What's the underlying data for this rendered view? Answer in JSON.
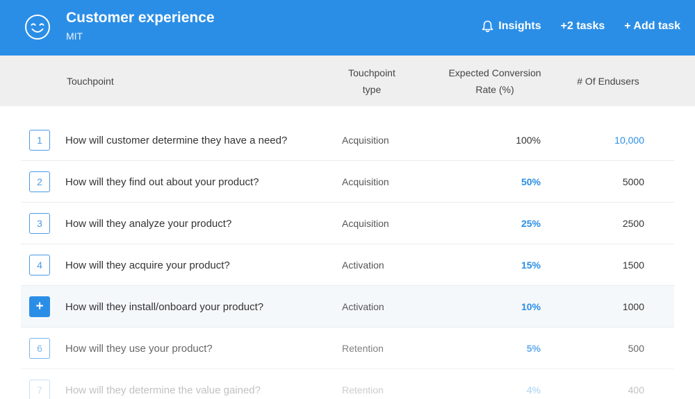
{
  "header": {
    "icon": "smiley-icon",
    "title": "Customer experience",
    "subtitle": "MIT",
    "insights_label": "Insights",
    "tasks_label": "+2 tasks",
    "add_task_label": "+ Add task"
  },
  "columns": {
    "touchpoint": "Touchpoint",
    "type_line1": "Touchpoint",
    "type_line2": "type",
    "rate_line1": "Expected Conversion",
    "rate_line2": "Rate (%)",
    "endusers": "# Of Endusers"
  },
  "rows": [
    {
      "num": "1",
      "question": "How will customer determine they have a need?",
      "type": "Acquisition",
      "rate": "100%",
      "endusers": "10,000"
    },
    {
      "num": "2",
      "question": "How will they find out about your product?",
      "type": "Acquisition",
      "rate": "50%",
      "endusers": "5000"
    },
    {
      "num": "3",
      "question": "How will they analyze your product?",
      "type": "Acquisition",
      "rate": "25%",
      "endusers": "2500"
    },
    {
      "num": "4",
      "question": "How will they acquire your product?",
      "type": "Activation",
      "rate": "15%",
      "endusers": "1500"
    },
    {
      "num": "+",
      "question": "How will they install/onboard your product?",
      "type": "Activation",
      "rate": "10%",
      "endusers": "1000"
    },
    {
      "num": "6",
      "question": "How will they use your product?",
      "type": "Retention",
      "rate": "5%",
      "endusers": "500"
    },
    {
      "num": "7",
      "question": "How will they determine the value gained?",
      "type": "Retention",
      "rate": "4%",
      "endusers": "400"
    }
  ],
  "colors": {
    "accent": "#2b8ee6",
    "header_bg": "#efefef"
  }
}
